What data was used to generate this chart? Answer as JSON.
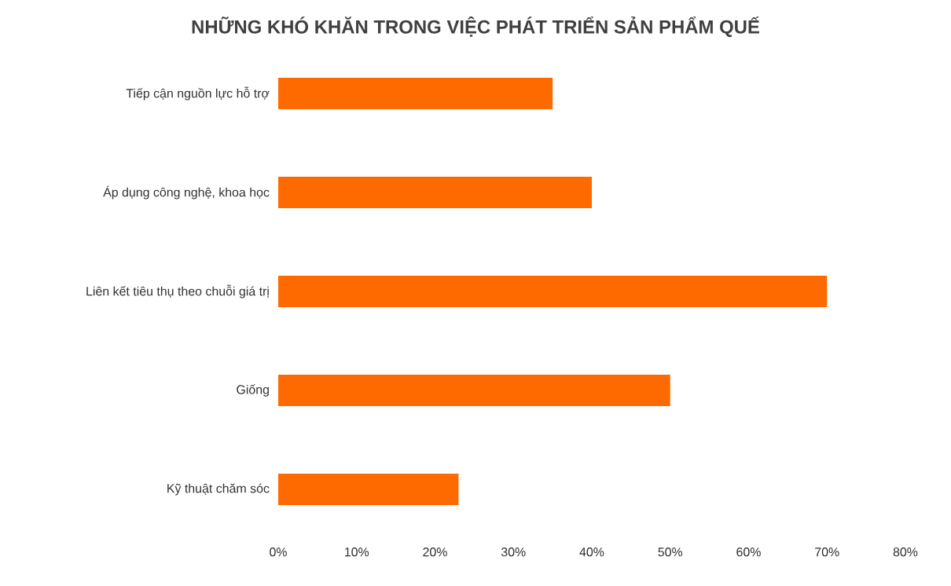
{
  "chart_data": {
    "type": "bar",
    "orientation": "horizontal",
    "title": "NHỮNG KHÓ KHĂN TRONG VIỆC PHÁT TRIỂN SẢN PHẨM QUẾ",
    "categories": [
      "Tiếp cận nguồn lực hỗ trợ",
      "Áp dụng công nghệ, khoa học",
      "Liên kết tiêu thụ theo chuỗi giá trị",
      "Giống",
      "Kỹ thuật chăm sóc"
    ],
    "values": [
      35,
      40,
      70,
      50,
      23
    ],
    "color": "#ff6a00",
    "xlim": [
      0,
      80
    ],
    "xticks": [
      {
        "value": 0,
        "label": "0%"
      },
      {
        "value": 10,
        "label": "10%"
      },
      {
        "value": 20,
        "label": "20%"
      },
      {
        "value": 30,
        "label": "30%"
      },
      {
        "value": 40,
        "label": "40%"
      },
      {
        "value": 50,
        "label": "50%"
      },
      {
        "value": 60,
        "label": "60%"
      },
      {
        "value": 70,
        "label": "70%"
      },
      {
        "value": 80,
        "label": "80%"
      }
    ]
  }
}
